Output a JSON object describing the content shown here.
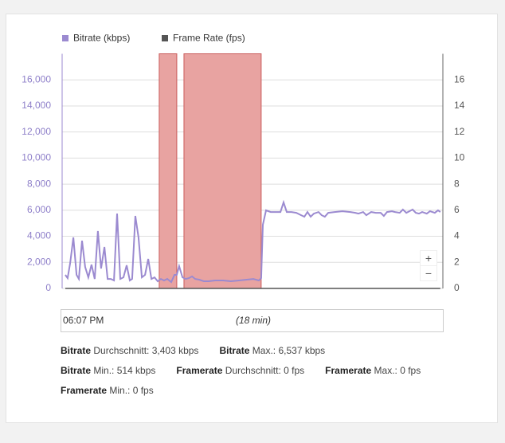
{
  "chart_data": {
    "type": "line",
    "xlim": [
      0,
      18
    ],
    "ylim": [
      0,
      18000
    ],
    "yticks": [
      0,
      {
        "value": 2000,
        "label": "2,000"
      },
      {
        "value": 4000,
        "label": "4,000"
      },
      {
        "value": 6000,
        "label": "6,000"
      },
      {
        "value": 8000,
        "label": "8,000"
      },
      {
        "value": 10000,
        "label": "10,000"
      },
      {
        "value": 12000,
        "label": "12,000"
      },
      {
        "value": 14000,
        "label": "14,000"
      },
      {
        "value": 16000,
        "label": "16,000"
      }
    ],
    "y2lim": [
      0,
      18
    ],
    "y2ticks": [
      0,
      2,
      4,
      6,
      8,
      10,
      12,
      14,
      16
    ],
    "grid": true,
    "x": [
      0.15,
      0.26,
      0.38,
      0.53,
      0.68,
      0.79,
      0.94,
      1.09,
      1.24,
      1.39,
      1.54,
      1.69,
      1.84,
      2.0,
      2.15,
      2.3,
      2.45,
      2.6,
      2.75,
      2.9,
      3.05,
      3.2,
      3.31,
      3.46,
      3.61,
      3.77,
      3.92,
      4.07,
      4.22,
      4.37,
      4.52,
      4.67,
      4.82,
      4.97,
      5.16,
      5.31,
      5.42,
      5.53,
      5.69,
      5.84,
      5.99,
      6.14,
      6.29,
      6.48,
      6.7,
      6.93,
      7.23,
      7.61,
      7.98,
      8.36,
      8.73,
      9.04,
      9.3,
      9.41,
      9.49,
      9.64,
      9.86,
      10.09,
      10.32,
      10.47,
      10.62,
      10.84,
      11.07,
      11.3,
      11.45,
      11.6,
      11.75,
      11.9,
      12.12,
      12.27,
      12.42,
      12.58,
      12.88,
      13.25,
      13.63,
      13.86,
      14.01,
      14.23,
      14.38,
      14.61,
      14.83,
      15.06,
      15.21,
      15.36,
      15.59,
      15.74,
      15.96,
      16.11,
      16.27,
      16.42,
      16.57,
      16.72,
      16.87,
      17.02,
      17.24,
      17.39,
      17.62,
      17.77,
      17.88
    ],
    "series": [
      {
        "name": "Bitrate (kbps)",
        "color": "#9b8ad0",
        "values": [
          1040,
          790,
          1950,
          3910,
          1040,
          730,
          3660,
          1650,
          850,
          1830,
          730,
          4400,
          1530,
          3180,
          730,
          730,
          610,
          5740,
          730,
          850,
          1770,
          610,
          730,
          5560,
          3910,
          850,
          1040,
          2260,
          730,
          850,
          550,
          730,
          610,
          730,
          490,
          1040,
          1040,
          1710,
          850,
          730,
          790,
          920,
          730,
          670,
          550,
          550,
          610,
          610,
          550,
          610,
          670,
          730,
          610,
          790,
          4890,
          5990,
          5860,
          5860,
          5860,
          6600,
          5860,
          5860,
          5800,
          5620,
          5500,
          5860,
          5500,
          5740,
          5860,
          5620,
          5500,
          5800,
          5860,
          5920,
          5860,
          5800,
          5740,
          5860,
          5620,
          5860,
          5800,
          5800,
          5560,
          5860,
          5920,
          5860,
          5800,
          6050,
          5800,
          5920,
          6050,
          5800,
          5740,
          5860,
          5740,
          5920,
          5800,
          5990,
          5860
        ]
      },
      {
        "name": "Frame Rate (fps)",
        "color": "#555555",
        "axis": "y2",
        "values": [
          0,
          0,
          0,
          0,
          0,
          0,
          0,
          0,
          0,
          0,
          0,
          0,
          0,
          0,
          0,
          0,
          0,
          0,
          0,
          0,
          0,
          0,
          0,
          0,
          0,
          0,
          0,
          0,
          0,
          0,
          0,
          0,
          0,
          0,
          0,
          0,
          0,
          0,
          0,
          0,
          0,
          0,
          0,
          0,
          0,
          0,
          0,
          0,
          0,
          0,
          0,
          0,
          0,
          0,
          0,
          0,
          0,
          0,
          0,
          0,
          0,
          0,
          0,
          0,
          0,
          0,
          0,
          0,
          0,
          0,
          0,
          0,
          0,
          0,
          0,
          0,
          0,
          0,
          0,
          0,
          0,
          0,
          0,
          0,
          0,
          0,
          0,
          0,
          0,
          0,
          0,
          0,
          0,
          0,
          0,
          0,
          0,
          0,
          0
        ]
      }
    ],
    "bands": [
      {
        "from": 4.59,
        "to": 5.42
      },
      {
        "from": 5.76,
        "to": 9.41
      }
    ],
    "band_color": "#e8a3a1",
    "range_start": "06:07 PM",
    "range_length": "(18 min)",
    "stats": [
      {
        "label": "Bitrate",
        "text": "Durchschnitt: 3,403 kbps"
      },
      {
        "label": "Bitrate",
        "text": "Max.: 6,537 kbps"
      },
      {
        "label": "Bitrate",
        "text": "Min.: 514 kbps"
      },
      {
        "label": "Framerate",
        "text": "Durchschnitt: 0 fps"
      },
      {
        "label": "Framerate",
        "text": "Max.: 0 fps"
      },
      {
        "label": "Framerate",
        "text": "Min.: 0 fps"
      }
    ]
  }
}
